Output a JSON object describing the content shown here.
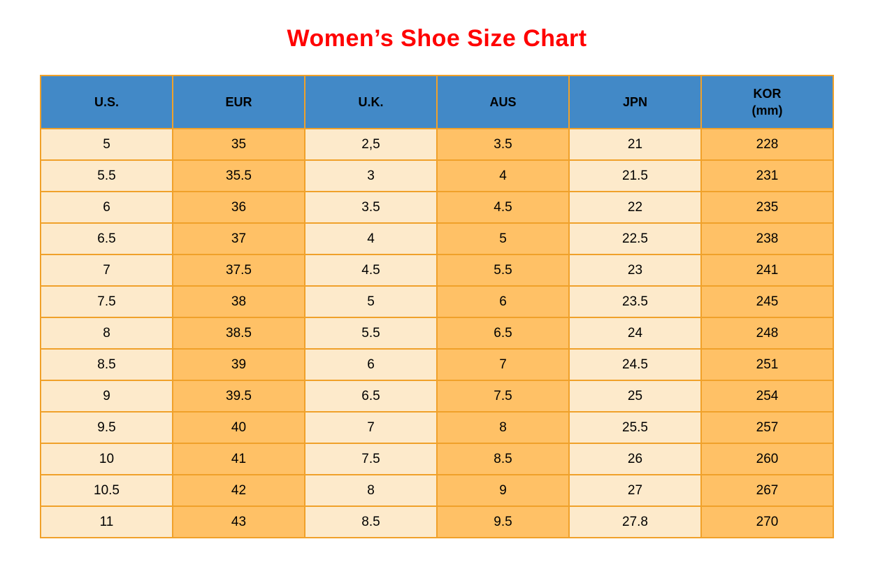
{
  "title": "Women’s Shoe Size Chart",
  "colors": {
    "title_red": "#FF0000",
    "header_blue": "#4289C7",
    "cell_cream": "#FDEACB",
    "cell_orange": "#FFC166",
    "border_orange": "#F0A12A",
    "text_black": "#000000"
  },
  "chart_data": {
    "type": "table",
    "title": "Women’s Shoe Size Chart",
    "columns": [
      {
        "label": "U.S.",
        "sublabel": ""
      },
      {
        "label": "EUR",
        "sublabel": ""
      },
      {
        "label": "U.K.",
        "sublabel": ""
      },
      {
        "label": "AUS",
        "sublabel": ""
      },
      {
        "label": "JPN",
        "sublabel": ""
      },
      {
        "label": "KOR",
        "sublabel": "(mm)"
      }
    ],
    "rows": [
      [
        "5",
        "35",
        "2,5",
        "3.5",
        "21",
        "228"
      ],
      [
        "5.5",
        "35.5",
        "3",
        "4",
        "21.5",
        "231"
      ],
      [
        "6",
        "36",
        "3.5",
        "4.5",
        "22",
        "235"
      ],
      [
        "6.5",
        "37",
        "4",
        "5",
        "22.5",
        "238"
      ],
      [
        "7",
        "37.5",
        "4.5",
        "5.5",
        "23",
        "241"
      ],
      [
        "7.5",
        "38",
        "5",
        "6",
        "23.5",
        "245"
      ],
      [
        "8",
        "38.5",
        "5.5",
        "6.5",
        "24",
        "248"
      ],
      [
        "8.5",
        "39",
        "6",
        "7",
        "24.5",
        "251"
      ],
      [
        "9",
        "39.5",
        "6.5",
        "7.5",
        "25",
        "254"
      ],
      [
        "9.5",
        "40",
        "7",
        "8",
        "25.5",
        "257"
      ],
      [
        "10",
        "41",
        "7.5",
        "8.5",
        "26",
        "260"
      ],
      [
        "10.5",
        "42",
        "8",
        "9",
        "27",
        "267"
      ],
      [
        "11",
        "43",
        "8.5",
        "9.5",
        "27.8",
        "270"
      ]
    ]
  }
}
